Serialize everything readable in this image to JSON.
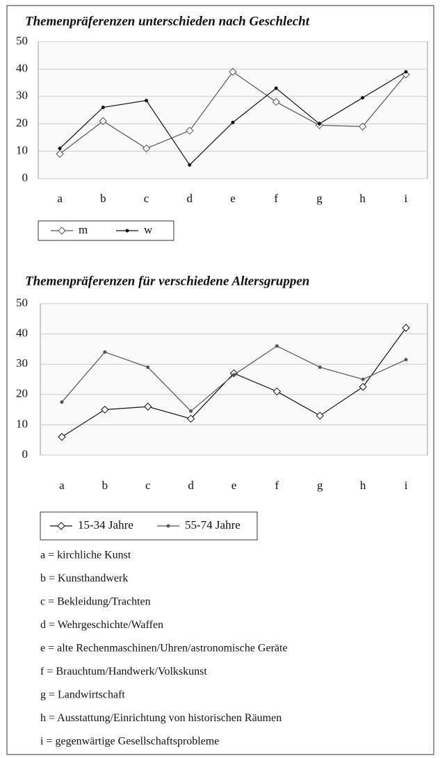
{
  "chart_data": [
    {
      "type": "line",
      "title": "Themenpräferenzen unterschieden nach Geschlecht",
      "categories": [
        "a",
        "b",
        "c",
        "d",
        "e",
        "f",
        "g",
        "h",
        "i"
      ],
      "series": [
        {
          "name": "m",
          "color": "#555555",
          "marker": "diamond",
          "values": [
            9,
            21,
            11,
            17.5,
            39,
            28,
            19.5,
            19,
            38
          ]
        },
        {
          "name": "w",
          "color": "#111111",
          "marker": "dot",
          "values": [
            11,
            26,
            28.5,
            5,
            20.5,
            33,
            20,
            29.5,
            39
          ]
        }
      ],
      "ylim": [
        0,
        50
      ],
      "yticks": [
        0,
        10,
        20,
        30,
        40,
        50
      ],
      "grid": true
    },
    {
      "type": "line",
      "title": "Themenpräferenzen für verschiedene Altersgruppen",
      "categories": [
        "a",
        "b",
        "c",
        "d",
        "e",
        "f",
        "g",
        "h",
        "i"
      ],
      "series": [
        {
          "name": "15-34 Jahre",
          "color": "#111111",
          "marker": "diamond",
          "values": [
            6,
            15,
            16,
            12,
            27,
            21,
            13,
            22.5,
            42
          ]
        },
        {
          "name": "55-74 Jahre",
          "color": "#555555",
          "marker": "dot",
          "values": [
            17.5,
            34,
            29,
            14.5,
            26.5,
            36,
            29,
            25,
            31.5
          ]
        }
      ],
      "ylim": [
        0,
        50
      ],
      "yticks": [
        0,
        10,
        20,
        30,
        40,
        50
      ],
      "grid": true
    }
  ],
  "key": [
    "a = kirchliche Kunst",
    "b = Kunsthandwerk",
    "c = Bekleidung/Trachten",
    "d = Wehrgeschichte/Waffen",
    "e = alte Rechenmaschinen/Uhren/astronomische Geräte",
    "f = Brauchtum/Handwerk/Volkskunst",
    "g = Landwirtschaft",
    "h = Ausstattung/Einrichtung von historischen Räumen",
    "i = gegenwärtige Gesellschaftsprobleme"
  ]
}
